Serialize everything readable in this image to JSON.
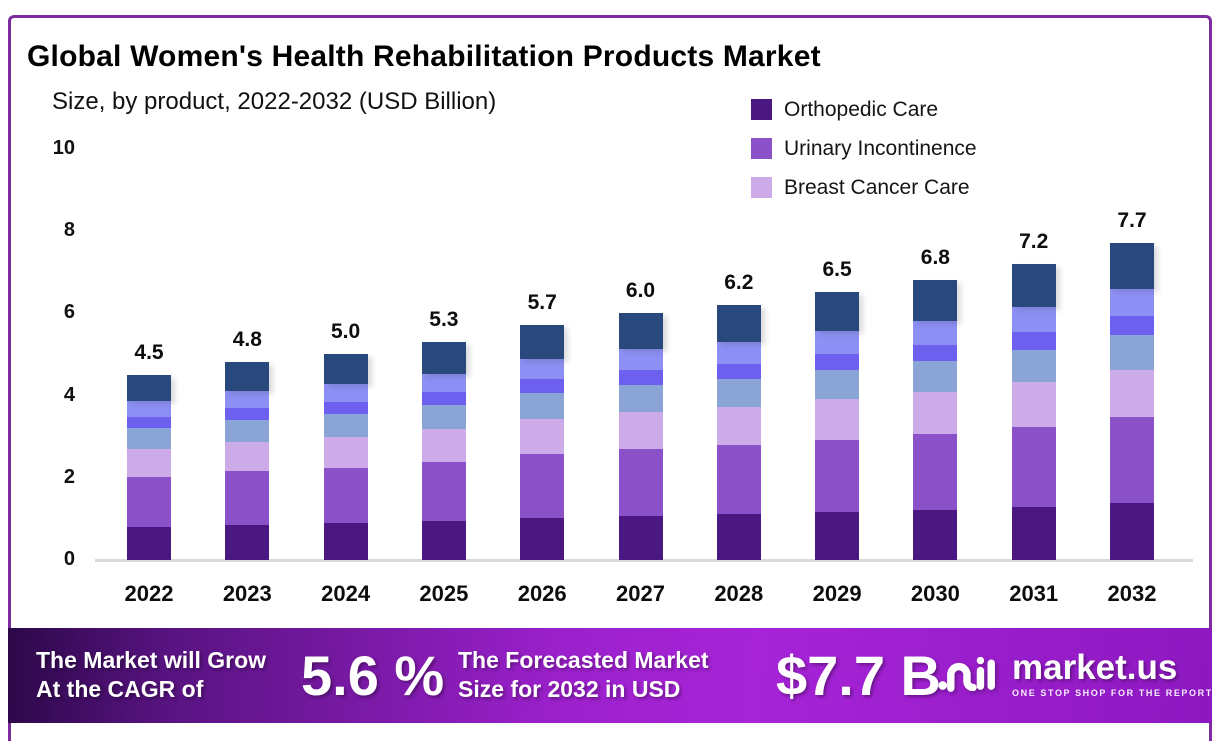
{
  "header": {
    "title": "Global Women's Health Rehabilitation Products Market",
    "subtitle": "Size, by product, 2022-2032 (USD Billion)"
  },
  "chart_data": {
    "type": "bar",
    "stacked": true,
    "title": "Global Women's Health Rehabilitation Products Market",
    "subtitle": "Size, by product, 2022-2032 (USD Billion)",
    "xlabel": "",
    "ylabel": "USD Billion",
    "ylim": [
      0,
      10
    ],
    "y_ticks": [
      0,
      2,
      4,
      6,
      8,
      10
    ],
    "grid": false,
    "legend_position": "top-right",
    "categories": [
      "2022",
      "2023",
      "2024",
      "2025",
      "2026",
      "2027",
      "2028",
      "2029",
      "2030",
      "2031",
      "2032"
    ],
    "totals": [
      4.5,
      4.8,
      5.0,
      5.3,
      5.7,
      6.0,
      6.2,
      6.5,
      6.8,
      7.2,
      7.7
    ],
    "total_labels": [
      "4.5",
      "4.8",
      "5.0",
      "5.3",
      "5.7",
      "6.0",
      "6.2",
      "6.5",
      "6.8",
      "7.2",
      "7.7"
    ],
    "series": [
      {
        "name": "Orthopedic Care",
        "in_legend": true,
        "color": "#4a1880",
        "values": [
          0.81,
          0.86,
          0.9,
          0.95,
          1.03,
          1.08,
          1.12,
          1.17,
          1.22,
          1.3,
          1.39
        ]
      },
      {
        "name": "Urinary Incontinence",
        "in_legend": true,
        "color": "#8a51c8",
        "values": [
          1.22,
          1.3,
          1.35,
          1.43,
          1.54,
          1.62,
          1.67,
          1.76,
          1.84,
          1.94,
          2.08
        ]
      },
      {
        "name": "Breast Cancer Care",
        "in_legend": true,
        "color": "#cdaae8",
        "values": [
          0.68,
          0.72,
          0.75,
          0.8,
          0.86,
          0.9,
          0.93,
          0.98,
          1.02,
          1.08,
          1.16
        ]
      },
      {
        "name": "unlabeled-steel-blue-segment",
        "in_legend": false,
        "color": "#8ba4d6",
        "values": [
          0.5,
          0.53,
          0.55,
          0.58,
          0.63,
          0.66,
          0.68,
          0.72,
          0.75,
          0.79,
          0.85
        ]
      },
      {
        "name": "unlabeled-violet-segment",
        "in_legend": false,
        "color": "#6d60ee",
        "values": [
          0.27,
          0.29,
          0.3,
          0.32,
          0.34,
          0.36,
          0.37,
          0.39,
          0.41,
          0.43,
          0.46
        ]
      },
      {
        "name": "unlabeled-periwinkle-segment",
        "in_legend": false,
        "color": "#8c90f4",
        "values": [
          0.38,
          0.41,
          0.43,
          0.45,
          0.48,
          0.51,
          0.53,
          0.55,
          0.58,
          0.61,
          0.65
        ]
      },
      {
        "name": "unlabeled-navy-segment",
        "in_legend": false,
        "color": "#29487b",
        "values": [
          0.65,
          0.7,
          0.73,
          0.77,
          0.83,
          0.87,
          0.9,
          0.94,
          0.99,
          1.04,
          1.12
        ]
      }
    ]
  },
  "banner": {
    "left_line1": "The Market will Grow",
    "left_line2": "At the CAGR of",
    "cagr_value": "5.6 %",
    "mid_line1": "The Forecasted Market",
    "mid_line2": "Size for 2032 in USD",
    "forecast_value": "$7.7 B",
    "logo_text": "market.us",
    "logo_tagline": "ONE STOP SHOP FOR THE REPORTS"
  },
  "colors": {
    "frame_border": "#7b2da0",
    "banner_gradient_start": "#2c0848",
    "banner_gradient_mid": "#a724d8",
    "banner_gradient_end": "#8d18c0",
    "axis_line": "#d9d9d9"
  }
}
